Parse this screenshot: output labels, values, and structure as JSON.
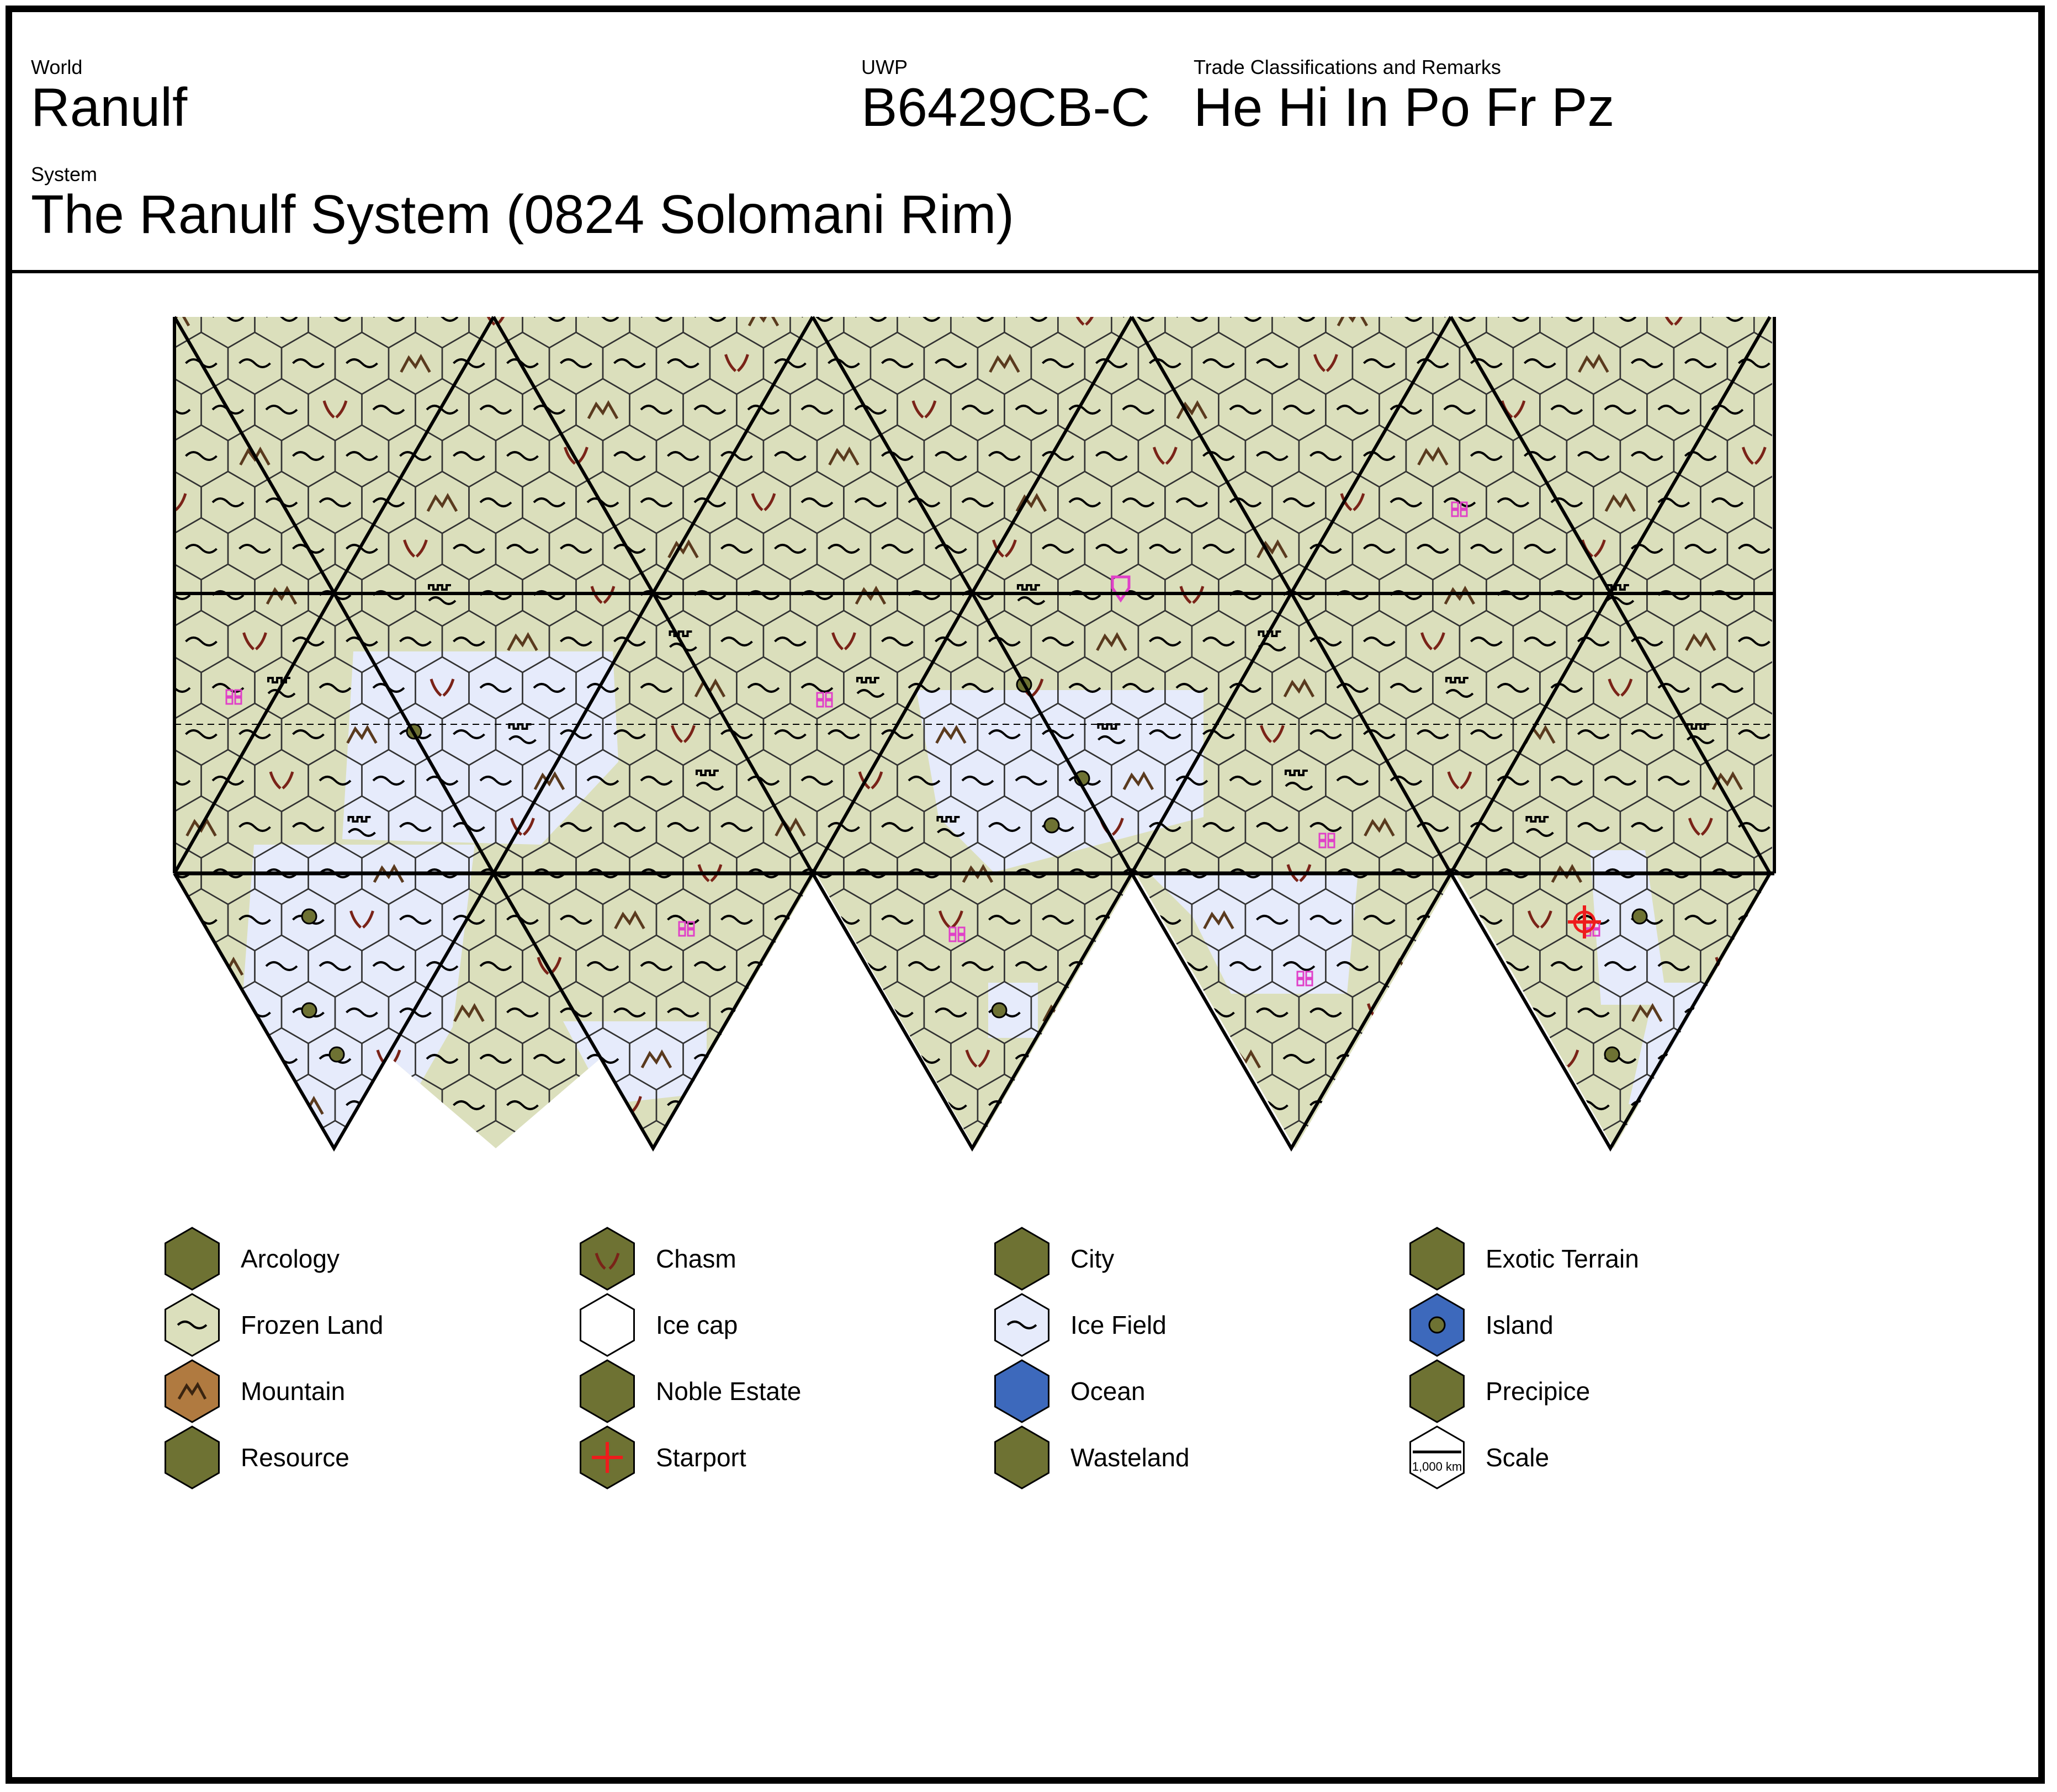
{
  "header": {
    "world_label": "World",
    "world_name": "Ranulf",
    "uwp_label": "UWP",
    "uwp": "B6429CB-C",
    "trade_label": "Trade Classifications and Remarks",
    "trade_codes": "He Hi In Po Fr Pz",
    "system_label": "System",
    "system_name": "The Ranulf System (0824 Solomani Rim)"
  },
  "colors": {
    "frozen_land": "#dbdfbc",
    "ice_field": "#e6ebfb",
    "ice_cap": "#ffffff",
    "ocean": "#3d69bc",
    "mountain": "#b07a40",
    "olive": "#6e7233",
    "chasm_mark": "#7a2318",
    "mountain_mark": "#5a3a1e",
    "city_mark": "#e040c8",
    "resource_mark": "#7a1a7a",
    "starport_mark": "#ee1c1c",
    "wasteland_mark": "#a7a077",
    "island_dot": "#6e7233",
    "grid_line": "#000000"
  },
  "legend": [
    {
      "label": "Arcology",
      "icon": "arcology-icon"
    },
    {
      "label": "Chasm",
      "icon": "chasm-icon"
    },
    {
      "label": "City",
      "icon": "city-icon"
    },
    {
      "label": "Exotic Terrain",
      "icon": "exotic-terrain-icon"
    },
    {
      "label": "Frozen Land",
      "icon": "frozen-land-icon"
    },
    {
      "label": "Ice cap",
      "icon": "ice-cap-icon"
    },
    {
      "label": "Ice Field",
      "icon": "ice-field-icon"
    },
    {
      "label": "Island",
      "icon": "island-icon"
    },
    {
      "label": "Mountain",
      "icon": "mountain-icon"
    },
    {
      "label": "Noble Estate",
      "icon": "noble-estate-icon"
    },
    {
      "label": "Ocean",
      "icon": "ocean-icon"
    },
    {
      "label": "Precipice",
      "icon": "precipice-icon"
    },
    {
      "label": "Resource",
      "icon": "resource-icon"
    },
    {
      "label": "Starport",
      "icon": "starport-icon"
    },
    {
      "label": "Wasteland",
      "icon": "wasteland-icon"
    },
    {
      "label": "Scale",
      "icon": "scale-icon",
      "scale_text": "1,000 km"
    }
  ]
}
